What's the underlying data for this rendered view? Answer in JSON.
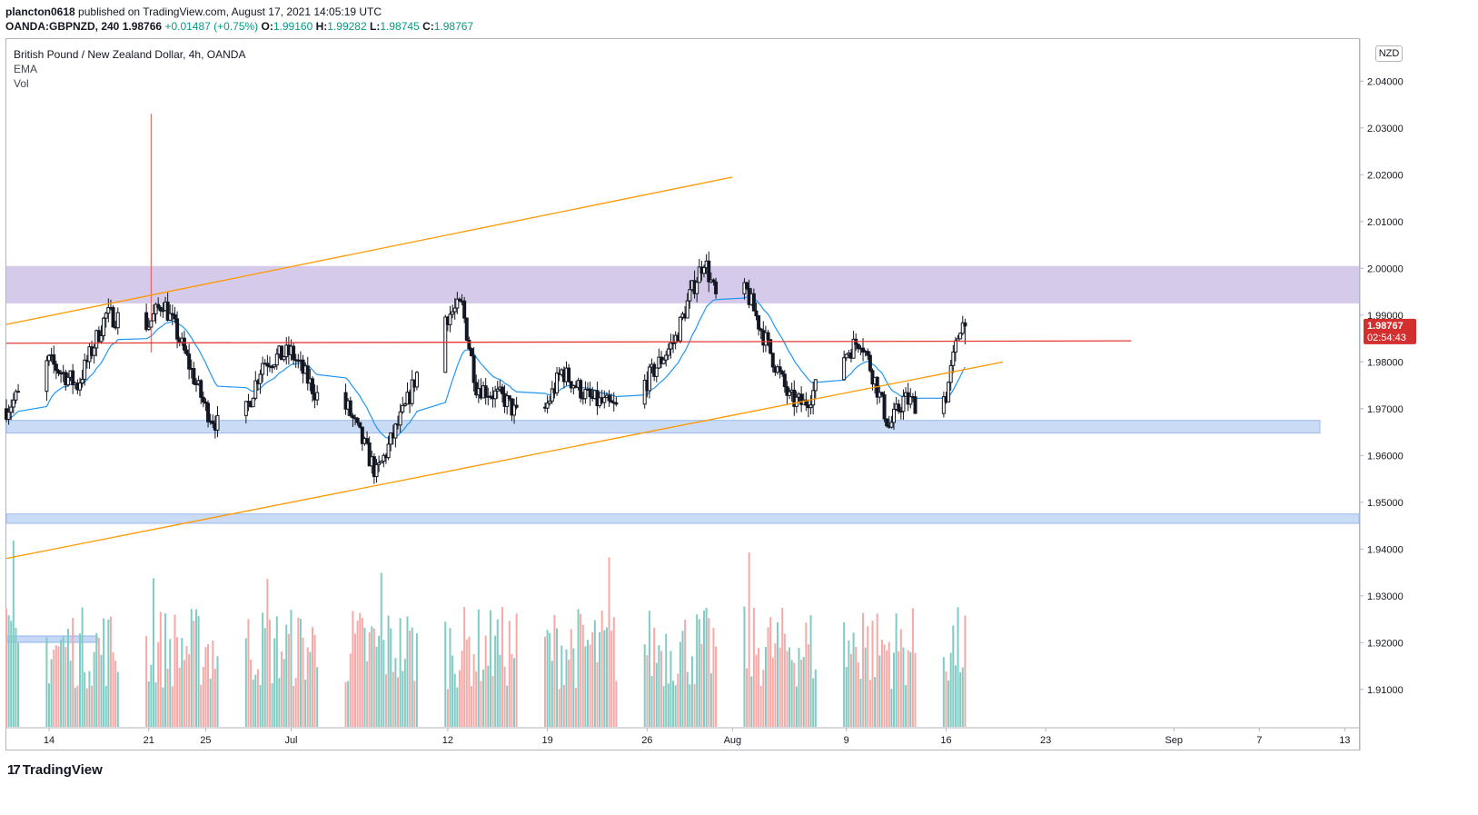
{
  "header": {
    "author": "plancton0618",
    "published_text": "published on TradingView.com, August 17, 2021 14:05:19 UTC",
    "symbol": "OANDA:GBPNZD, 240",
    "last": "1.98766",
    "change": "+0.01487 (+0.75%)",
    "ohlc": {
      "o_label": "O:",
      "o": "1.99160",
      "h_label": "H:",
      "h": "1.99282",
      "l_label": "L:",
      "l": "1.98745",
      "c_label": "C:",
      "c": "1.98767"
    }
  },
  "legend": {
    "title": "British Pound / New Zealand Dollar, 4h, OANDA",
    "indicator_1": "EMA",
    "indicator_2": "Vol"
  },
  "currency_badge": "NZD",
  "price_label": {
    "price": "1.98767",
    "countdown": "02:54:43",
    "color": "#d32f2f"
  },
  "logo_text": "TradingView",
  "chart_data": {
    "type": "candlestick",
    "y_axis": {
      "min": 1.902,
      "max": 2.049,
      "ticks": [
        "2.04000",
        "2.03000",
        "2.02000",
        "2.01000",
        "2.00000",
        "1.99000",
        "1.98000",
        "1.97000",
        "1.96000",
        "1.95000",
        "1.94000",
        "1.93000",
        "1.92000",
        "1.91000"
      ]
    },
    "x_axis": {
      "ticks": [
        "14",
        "21",
        "25",
        "Jul",
        "12",
        "19",
        "26",
        "Aug",
        "9",
        "16",
        "23",
        "Sep",
        "7",
        "13"
      ]
    },
    "close_path": [
      {
        "date": "2021-06-11",
        "close": 1.97
      },
      {
        "date": "2021-06-14",
        "close": 1.98
      },
      {
        "date": "2021-06-16",
        "close": 1.975
      },
      {
        "date": "2021-06-18",
        "close": 1.99
      },
      {
        "date": "2021-06-21",
        "close": 1.988
      },
      {
        "date": "2021-06-22",
        "close": 1.993
      },
      {
        "date": "2021-06-23",
        "close": 1.986
      },
      {
        "date": "2021-06-25",
        "close": 1.97
      },
      {
        "date": "2021-06-27",
        "close": 1.962
      },
      {
        "date": "2021-06-29",
        "close": 1.98
      },
      {
        "date": "2021-07-01",
        "close": 1.982
      },
      {
        "date": "2021-07-03",
        "close": 1.972
      },
      {
        "date": "2021-07-05",
        "close": 1.97
      },
      {
        "date": "2021-07-07",
        "close": 1.956
      },
      {
        "date": "2021-07-09",
        "close": 1.97
      },
      {
        "date": "2021-07-11",
        "close": 1.988
      },
      {
        "date": "2021-07-13",
        "close": 1.992
      },
      {
        "date": "2021-07-14",
        "close": 1.975
      },
      {
        "date": "2021-07-16",
        "close": 1.972
      },
      {
        "date": "2021-07-18",
        "close": 1.964
      },
      {
        "date": "2021-07-20",
        "close": 1.978
      },
      {
        "date": "2021-07-22",
        "close": 1.972
      },
      {
        "date": "2021-07-24",
        "close": 1.97
      },
      {
        "date": "2021-07-26",
        "close": 1.976
      },
      {
        "date": "2021-07-28",
        "close": 1.985
      },
      {
        "date": "2021-07-29",
        "close": 1.994
      },
      {
        "date": "2021-07-30",
        "close": 2.002
      },
      {
        "date": "2021-07-31",
        "close": 1.992
      },
      {
        "date": "2021-08-02",
        "close": 1.995
      },
      {
        "date": "2021-08-03",
        "close": 1.987
      },
      {
        "date": "2021-08-05",
        "close": 1.972
      },
      {
        "date": "2021-08-06",
        "close": 1.971
      },
      {
        "date": "2021-08-08",
        "close": 1.979
      },
      {
        "date": "2021-08-10",
        "close": 1.985
      },
      {
        "date": "2021-08-11",
        "close": 1.976
      },
      {
        "date": "2021-08-12",
        "close": 1.966
      },
      {
        "date": "2021-08-13",
        "close": 1.972
      },
      {
        "date": "2021-08-15",
        "close": 1.97
      },
      {
        "date": "2021-08-16",
        "close": 1.973
      },
      {
        "date": "2021-08-17",
        "close": 1.988
      }
    ],
    "last_price": 1.98767,
    "spike": {
      "date": "2021-06-21",
      "high": 2.033,
      "low": 1.982
    },
    "colors": {
      "up": "#26a69a",
      "down": "#ef5350",
      "ema": "#2196f3"
    },
    "zones": [
      {
        "name": "resistance",
        "from": 1.9925,
        "to": 2.0005,
        "color": "#d1c4e9"
      },
      {
        "name": "support",
        "from": 1.9648,
        "to": 1.9675,
        "color": "#c5d8f5"
      },
      {
        "name": "lower-support",
        "from": 1.9455,
        "to": 1.9475,
        "color": "#c5d8f5"
      }
    ],
    "trendlines": [
      {
        "name": "upper-channel",
        "color": "#ff9800",
        "from": {
          "date": "2021-06-11",
          "price": 1.988
        },
        "to": {
          "date": "2021-08-01",
          "price": 2.0195
        }
      },
      {
        "name": "lower-channel",
        "color": "#ff9800",
        "from": {
          "date": "2021-06-11",
          "price": 1.938
        },
        "to": {
          "date": "2021-08-20",
          "price": 1.98
        }
      },
      {
        "name": "descending-resistance",
        "color": "#e53935",
        "from": {
          "date": "2021-06-11",
          "price": 1.984
        },
        "to": {
          "date": "2021-08-29",
          "price": 1.9845
        }
      }
    ],
    "volume_max_height_fraction": 0.22
  }
}
